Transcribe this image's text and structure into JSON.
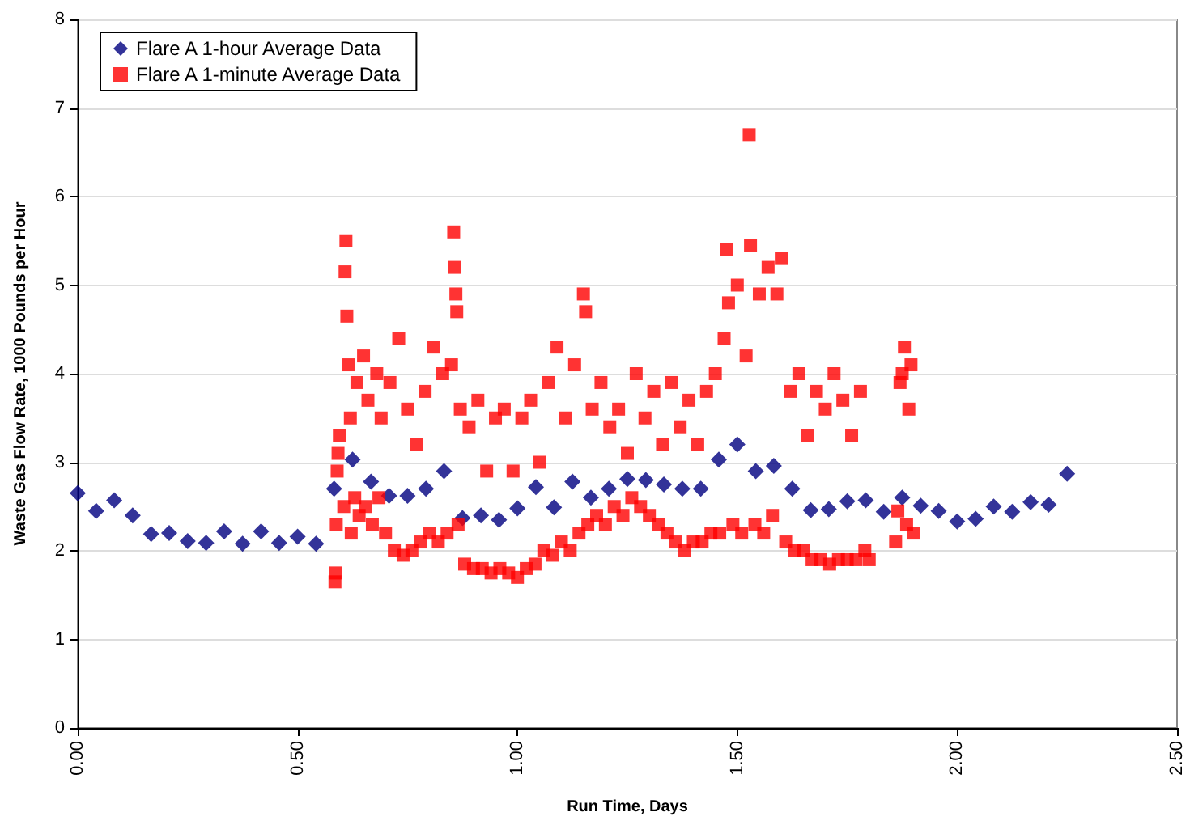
{
  "chart_data": {
    "type": "scatter",
    "xlabel": "Run Time, Days",
    "ylabel": "Waste Gas Flow Rate, 1000 Pounds per Hour",
    "xlim": [
      0,
      2.5
    ],
    "xticks": [
      {
        "value": 0,
        "label": "0.00"
      },
      {
        "value": 0.5,
        "label": "0.50"
      },
      {
        "value": 1,
        "label": "1.00"
      },
      {
        "value": 1.5,
        "label": "1.50"
      },
      {
        "value": 2,
        "label": "2.00"
      },
      {
        "value": 2.5,
        "label": "2.50"
      }
    ],
    "ylim": [
      0,
      8
    ],
    "yticks": [
      0,
      1,
      2,
      3,
      4,
      5,
      6,
      7,
      8
    ],
    "grid": "y",
    "legend": "top left",
    "series": [
      {
        "name": "Flare A 1-hour Average Data",
        "color": "#000080",
        "marker": "diamond",
        "x": [
          0,
          0.042,
          0.083,
          0.125,
          0.167,
          0.208,
          0.25,
          0.292,
          0.333,
          0.375,
          0.417,
          0.458,
          0.5,
          0.542,
          0.583,
          0.625,
          0.667,
          0.708,
          0.75,
          0.792,
          0.833,
          0.875,
          0.917,
          0.958,
          1.0,
          1.042,
          1.083,
          1.125,
          1.167,
          1.208,
          1.25,
          1.292,
          1.333,
          1.375,
          1.417,
          1.458,
          1.5,
          1.542,
          1.583,
          1.625,
          1.667,
          1.708,
          1.75,
          1.792,
          1.833,
          1.875,
          1.917,
          1.958,
          2.0,
          2.042,
          2.083,
          2.125,
          2.167,
          2.208,
          2.25
        ],
        "values": [
          2.65,
          2.45,
          2.57,
          2.4,
          2.19,
          2.2,
          2.11,
          2.09,
          2.22,
          2.08,
          2.22,
          2.09,
          2.16,
          2.08,
          2.7,
          3.03,
          2.78,
          2.62,
          2.62,
          2.7,
          2.9,
          2.37,
          2.4,
          2.35,
          2.48,
          2.72,
          2.49,
          2.78,
          2.6,
          2.7,
          2.81,
          2.8,
          2.75,
          2.7,
          2.7,
          3.03,
          3.2,
          2.9,
          2.96,
          2.7,
          2.46,
          2.47,
          2.56,
          2.57,
          2.44,
          2.6,
          2.51,
          2.45,
          2.33,
          2.36,
          2.5,
          2.44,
          2.55,
          2.52,
          2.87
        ]
      },
      {
        "name": "Flare A 1-minute Average Data",
        "color": "#ff0000",
        "marker": "square",
        "x": [
          0.585,
          0.586,
          0.588,
          0.59,
          0.592,
          0.595,
          0.605,
          0.608,
          0.61,
          0.612,
          0.615,
          0.62,
          0.622,
          0.63,
          0.635,
          0.64,
          0.65,
          0.655,
          0.66,
          0.67,
          0.68,
          0.685,
          0.69,
          0.7,
          0.71,
          0.72,
          0.73,
          0.74,
          0.75,
          0.76,
          0.77,
          0.78,
          0.79,
          0.8,
          0.81,
          0.82,
          0.83,
          0.84,
          0.85,
          0.855,
          0.857,
          0.86,
          0.862,
          0.865,
          0.87,
          0.88,
          0.89,
          0.9,
          0.91,
          0.92,
          0.93,
          0.94,
          0.95,
          0.96,
          0.97,
          0.98,
          0.99,
          1.0,
          1.01,
          1.02,
          1.03,
          1.04,
          1.05,
          1.06,
          1.07,
          1.08,
          1.09,
          1.1,
          1.11,
          1.12,
          1.13,
          1.14,
          1.15,
          1.155,
          1.16,
          1.17,
          1.18,
          1.19,
          1.2,
          1.21,
          1.22,
          1.23,
          1.24,
          1.25,
          1.26,
          1.27,
          1.28,
          1.29,
          1.3,
          1.31,
          1.32,
          1.33,
          1.34,
          1.35,
          1.36,
          1.37,
          1.38,
          1.39,
          1.4,
          1.41,
          1.42,
          1.43,
          1.44,
          1.45,
          1.46,
          1.47,
          1.475,
          1.48,
          1.49,
          1.5,
          1.51,
          1.52,
          1.527,
          1.53,
          1.54,
          1.55,
          1.56,
          1.57,
          1.58,
          1.59,
          1.6,
          1.61,
          1.62,
          1.63,
          1.64,
          1.65,
          1.66,
          1.67,
          1.68,
          1.69,
          1.7,
          1.71,
          1.72,
          1.73,
          1.74,
          1.75,
          1.76,
          1.77,
          1.78,
          1.79,
          1.8,
          1.86,
          1.865,
          1.87,
          1.875,
          1.88,
          1.885,
          1.89,
          1.895,
          1.9
        ],
        "values": [
          1.65,
          1.75,
          2.3,
          2.9,
          3.1,
          3.3,
          2.5,
          5.15,
          5.5,
          4.65,
          4.1,
          3.5,
          2.2,
          2.6,
          3.9,
          2.4,
          4.2,
          2.5,
          3.7,
          2.3,
          4.0,
          2.6,
          3.5,
          2.2,
          3.9,
          2.0,
          4.4,
          1.95,
          3.6,
          2.0,
          3.2,
          2.1,
          3.8,
          2.2,
          4.3,
          2.1,
          4.0,
          2.2,
          4.1,
          5.6,
          5.2,
          4.9,
          4.7,
          2.3,
          3.6,
          1.85,
          3.4,
          1.8,
          3.7,
          1.8,
          2.9,
          1.75,
          3.5,
          1.8,
          3.6,
          1.75,
          2.9,
          1.7,
          3.5,
          1.8,
          3.7,
          1.85,
          3.0,
          2.0,
          3.9,
          1.95,
          4.3,
          2.1,
          3.5,
          2.0,
          4.1,
          2.2,
          4.9,
          4.7,
          2.3,
          3.6,
          2.4,
          3.9,
          2.3,
          3.4,
          2.5,
          3.6,
          2.4,
          3.1,
          2.6,
          4.0,
          2.5,
          3.5,
          2.4,
          3.8,
          2.3,
          3.2,
          2.2,
          3.9,
          2.1,
          3.4,
          2.0,
          3.7,
          2.1,
          3.2,
          2.1,
          3.8,
          2.2,
          4.0,
          2.2,
          4.4,
          5.4,
          4.8,
          2.3,
          5.0,
          2.2,
          4.2,
          6.7,
          5.45,
          2.3,
          4.9,
          2.2,
          5.2,
          2.4,
          4.9,
          5.3,
          2.1,
          3.8,
          2.0,
          4.0,
          2.0,
          3.3,
          1.9,
          3.8,
          1.9,
          3.6,
          1.85,
          4.0,
          1.9,
          3.7,
          1.9,
          3.3,
          1.9,
          3.8,
          2.0,
          1.9,
          2.1,
          2.45,
          3.9,
          4.0,
          4.3,
          2.3,
          3.6,
          4.1,
          2.2
        ]
      }
    ]
  }
}
